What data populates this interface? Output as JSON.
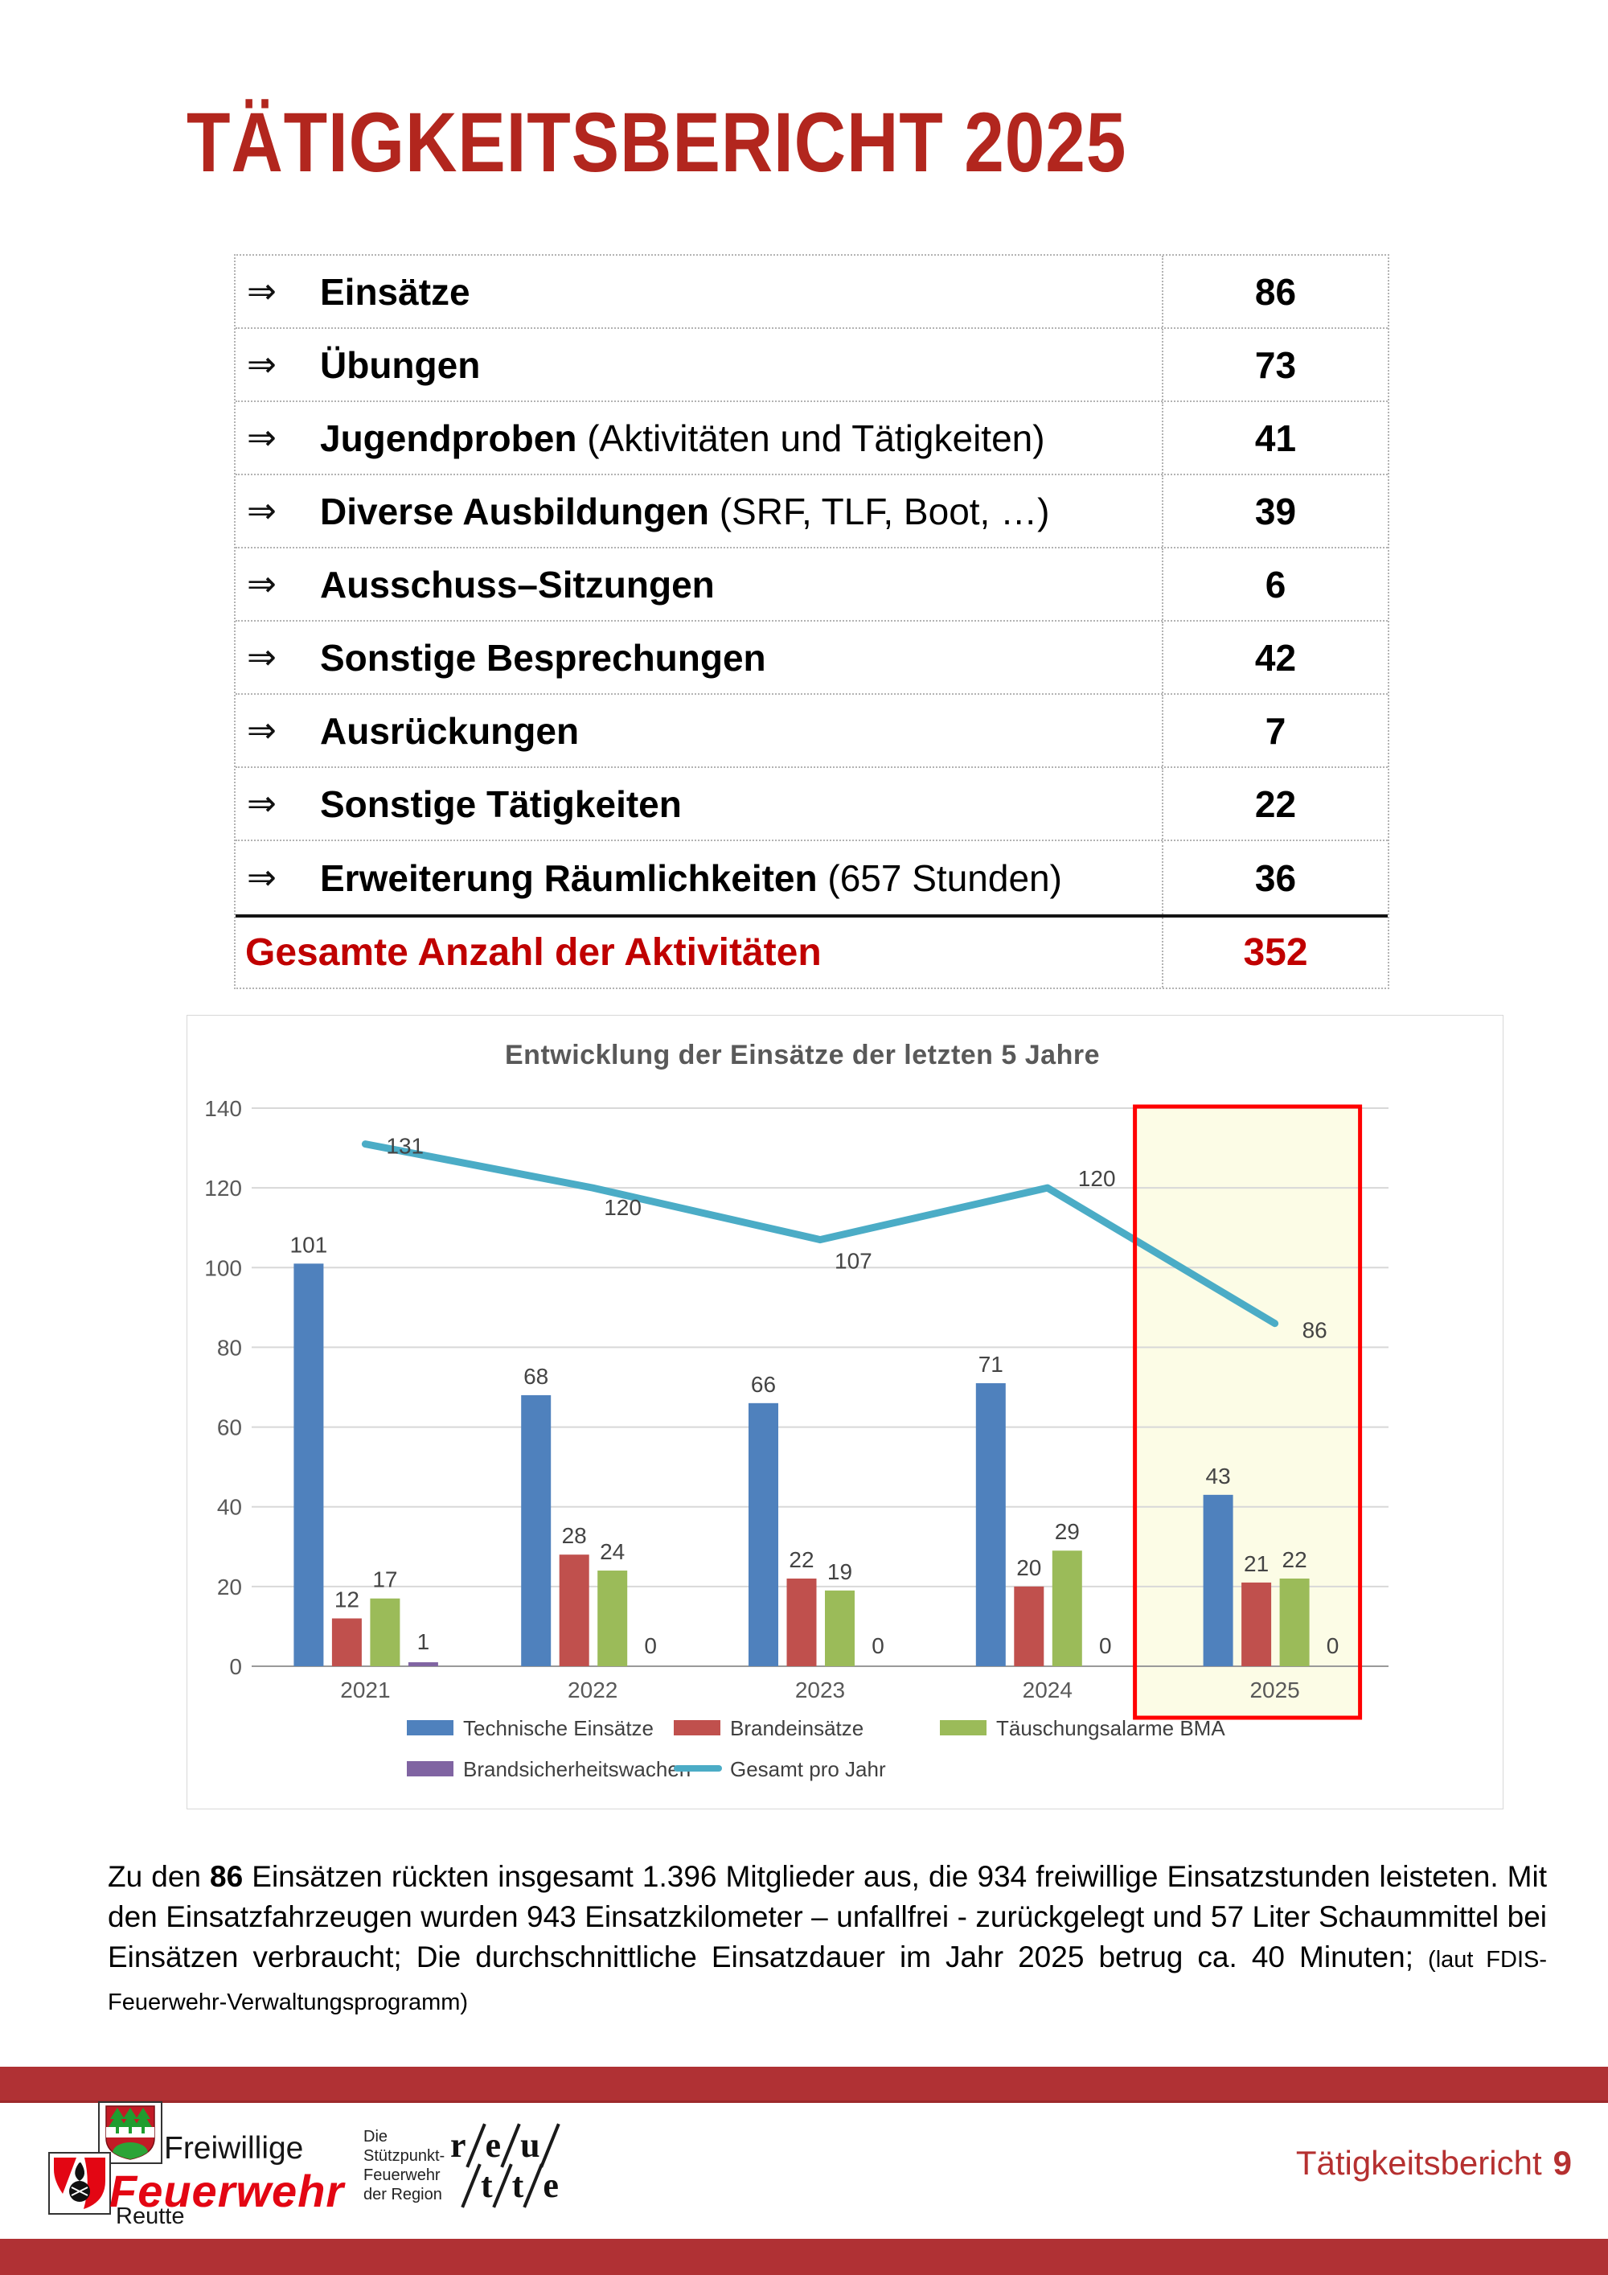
{
  "header": {
    "title": "TÄTIGKEITSBERICHT 2025"
  },
  "table": {
    "arrow_glyph": "⇒",
    "rows": [
      {
        "bold": "Einsätze",
        "rest": "",
        "value": "86"
      },
      {
        "bold": "Übungen",
        "rest": "",
        "value": "73"
      },
      {
        "bold": "Jugendproben",
        "rest": " (Aktivitäten und Tätigkeiten)",
        "value": "41"
      },
      {
        "bold": "Diverse Ausbildungen",
        "rest": " (SRF, TLF, Boot, …)",
        "value": "39"
      },
      {
        "bold": "Ausschuss–Sitzungen",
        "rest": "",
        "value": "6"
      },
      {
        "bold": "Sonstige Besprechungen",
        "rest": "",
        "value": "42"
      },
      {
        "bold": "Ausrückungen",
        "rest": "",
        "value": "7"
      },
      {
        "bold": "Sonstige Tätigkeiten",
        "rest": "",
        "value": "22"
      },
      {
        "bold": "Erweiterung Räumlichkeiten",
        "rest": " (657 Stunden)",
        "value": "36"
      }
    ],
    "total_label": "Gesamte Anzahl der Aktivitäten",
    "total_value": "352",
    "total_color": "#C00000"
  },
  "chart_data": {
    "type": "bar",
    "title": "Entwicklung der Einsätze der letzten 5 Jahre",
    "categories": [
      "2021",
      "2022",
      "2023",
      "2024",
      "2025"
    ],
    "series": [
      {
        "name": "Technische Einsätze",
        "type": "bar",
        "color": "#4F81BD",
        "values": [
          101,
          68,
          66,
          71,
          43
        ]
      },
      {
        "name": "Brandeinsätze",
        "type": "bar",
        "color": "#C0504D",
        "values": [
          12,
          28,
          22,
          20,
          21
        ]
      },
      {
        "name": "Täuschungsalarme BMA",
        "type": "bar",
        "color": "#9BBB59",
        "values": [
          17,
          24,
          19,
          29,
          22
        ]
      },
      {
        "name": "Brandsicherheitswachen",
        "type": "bar",
        "color": "#8064A2",
        "values": [
          1,
          0,
          0,
          0,
          0
        ]
      },
      {
        "name": "Gesamt pro Jahr",
        "type": "line",
        "color": "#4BACC6",
        "values": [
          131,
          120,
          107,
          120,
          86
        ]
      }
    ],
    "ylim": [
      0,
      140
    ],
    "ytick_step": 20,
    "grid": true,
    "legend_position": "bottom",
    "legend_rows": [
      [
        "Technische Einsätze",
        "Brandeinsätze",
        "Täuschungsalarme BMA"
      ],
      [
        "Brandsicherheitswachen",
        "Gesamt pro Jahr"
      ]
    ],
    "highlight": {
      "category": "2025",
      "border_color": "#FF0000",
      "fill": "#FCFCE6"
    }
  },
  "paragraph": {
    "intro": "Zu den ",
    "bold": "86",
    "body": " Einsätzen rückten insgesamt 1.396 Mitglieder aus, die 934 freiwillige Einsatzstunden leisteten. Mit den Einsatzfahrzeugen wurden 943 Einsatzkilometer – unfallfrei - zurückgelegt und 57 Liter Schaummittel bei Einsätzen verbraucht; Die durchschnittliche Einsatzdauer im Jahr 2025 betrug ca. 40 Minuten; ",
    "note": "(laut FDIS-Feuerwehr-Verwaltungsprogramm)"
  },
  "footer": {
    "brand_line1": "Freiwillige",
    "brand_line2": "Feuerwehr",
    "brand_line3": "Reutte",
    "region_lines": [
      "Die",
      "Stützpunkt-",
      "Feuerwehr",
      "der Region"
    ],
    "logo_row1": [
      "r",
      "e",
      "u"
    ],
    "logo_row2": [
      "t",
      "t",
      "e"
    ],
    "page_label": {
      "text": "Tätigkeitsbericht",
      "number": "9"
    },
    "band_color": "#B03134"
  }
}
